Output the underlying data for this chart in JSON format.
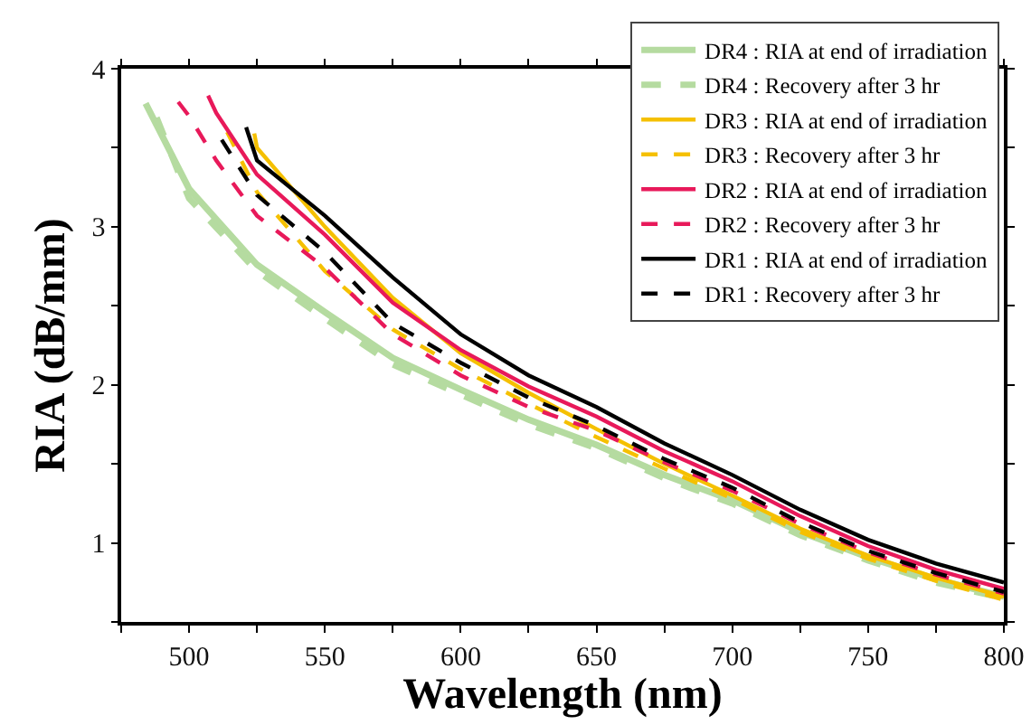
{
  "chart_data": {
    "type": "line",
    "xlabel": "Wavelength (nm)",
    "ylabel": "RIA (dB/mm)",
    "xlim": [
      475,
      800
    ],
    "ylim": [
      0.5,
      4
    ],
    "xticks": [
      {
        "value": 475,
        "label": null
      },
      500,
      {
        "value": 525,
        "label": null
      },
      550,
      {
        "value": 575,
        "label": null
      },
      600,
      {
        "value": 625,
        "label": null
      },
      650,
      {
        "value": 675,
        "label": null
      },
      700,
      {
        "value": 725,
        "label": null
      },
      750,
      {
        "value": 775,
        "label": null
      },
      800
    ],
    "yticks": [
      {
        "value": 0.5,
        "label": null
      },
      1,
      {
        "value": 1.5,
        "label": null
      },
      2,
      {
        "value": 2.5,
        "label": null
      },
      3,
      {
        "value": 3.5,
        "label": null
      },
      4
    ],
    "grid": false,
    "legend": "top right",
    "marker": "none",
    "series": [
      {
        "name": "DR4 : RIA at end of irradiation",
        "color": "#b5dba0",
        "line_style": "solid",
        "x": [
          484,
          500,
          525,
          550,
          575,
          600,
          625,
          650,
          675,
          700,
          725,
          750,
          775,
          800
        ],
        "values": [
          3.78,
          3.24,
          2.76,
          2.46,
          2.17,
          1.97,
          1.78,
          1.62,
          1.43,
          1.27,
          1.07,
          0.91,
          0.77,
          0.66
        ]
      },
      {
        "name": "DR4 : Recovery after 3 hr",
        "color": "#b5dba0",
        "line_style": "dashed",
        "x": [
          488,
          500,
          525,
          550,
          575,
          600,
          625,
          650,
          675,
          700,
          725,
          750,
          775,
          800
        ],
        "values": [
          3.69,
          3.18,
          2.72,
          2.42,
          2.13,
          1.94,
          1.75,
          1.6,
          1.41,
          1.25,
          1.05,
          0.89,
          0.75,
          0.65
        ]
      },
      {
        "name": "DR3 : RIA at end of irradiation",
        "color": "#f5c000",
        "line_style": "solid",
        "x": [
          524,
          525,
          550,
          575,
          600,
          625,
          650,
          675,
          700,
          725,
          750,
          775,
          800
        ],
        "values": [
          3.59,
          3.5,
          3.0,
          2.55,
          2.2,
          1.95,
          1.72,
          1.5,
          1.3,
          1.09,
          0.92,
          0.78,
          0.66
        ]
      },
      {
        "name": "DR3 : Recovery after 3 hr",
        "color": "#f5c000",
        "line_style": "dashed",
        "x": [
          514,
          525,
          550,
          575,
          600,
          625,
          650,
          675,
          700,
          725,
          750,
          775,
          800
        ],
        "values": [
          3.6,
          3.22,
          2.72,
          2.35,
          2.1,
          1.88,
          1.67,
          1.47,
          1.28,
          1.07,
          0.9,
          0.76,
          0.64
        ]
      },
      {
        "name": "DR2 : RIA at end of irradiation",
        "color": "#e8195a",
        "line_style": "solid",
        "x": [
          507,
          510,
          525,
          550,
          575,
          600,
          625,
          650,
          675,
          700,
          725,
          750,
          775,
          800
        ],
        "values": [
          3.83,
          3.72,
          3.33,
          2.95,
          2.52,
          2.22,
          1.99,
          1.8,
          1.58,
          1.39,
          1.17,
          0.98,
          0.83,
          0.71
        ]
      },
      {
        "name": "DR2 : Recovery after 3 hr",
        "color": "#e8195a",
        "line_style": "dashed",
        "x": [
          496,
          500,
          510,
          525,
          550,
          575,
          600,
          625,
          650,
          675,
          700,
          725,
          750,
          775,
          800
        ],
        "values": [
          3.79,
          3.7,
          3.42,
          3.07,
          2.74,
          2.32,
          2.06,
          1.86,
          1.71,
          1.51,
          1.33,
          1.12,
          0.94,
          0.8,
          0.68
        ]
      },
      {
        "name": "DR1 : RIA at end of irradiation",
        "color": "#000000",
        "line_style": "solid",
        "x": [
          521,
          525,
          550,
          575,
          600,
          625,
          650,
          675,
          700,
          725,
          750,
          775,
          800
        ],
        "values": [
          3.63,
          3.42,
          3.07,
          2.68,
          2.32,
          2.06,
          1.86,
          1.63,
          1.43,
          1.21,
          1.02,
          0.87,
          0.75
        ]
      },
      {
        "name": "DR1 : Recovery after 3 hr",
        "color": "#000000",
        "line_style": "dashed",
        "x": [
          512,
          525,
          550,
          575,
          600,
          625,
          650,
          675,
          700,
          725,
          750,
          775,
          800
        ],
        "values": [
          3.55,
          3.2,
          2.84,
          2.39,
          2.14,
          1.92,
          1.74,
          1.53,
          1.35,
          1.13,
          0.95,
          0.81,
          0.69
        ]
      }
    ]
  }
}
